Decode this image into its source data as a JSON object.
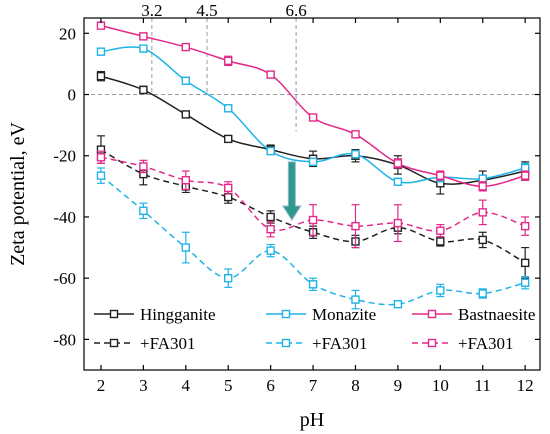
{
  "chart_data": {
    "type": "line",
    "xlabel": "pH",
    "ylabel": "Zeta potential, eV",
    "xlim": [
      1.6,
      12.35
    ],
    "ylim": [
      -90,
      25
    ],
    "x_ticks": [
      2,
      3,
      4,
      5,
      6,
      7,
      8,
      9,
      10,
      11,
      12
    ],
    "y_ticks": [
      20,
      0,
      -20,
      -40,
      -60,
      -80
    ],
    "reference_lines": {
      "horizontal_zero": 0,
      "vertical": [
        {
          "x": 3.2,
          "label": "3.2"
        },
        {
          "x": 4.5,
          "label": "4.5"
        },
        {
          "x": 6.6,
          "label": "6.6"
        }
      ]
    },
    "arrow": {
      "from": [
        6.5,
        -22
      ],
      "to": [
        6.5,
        -41
      ],
      "color": "#2e9a8c"
    },
    "legend": {
      "placement": "bottom-inside",
      "columns": 3
    },
    "series": [
      {
        "name": "Hingganite",
        "color": "#222222",
        "dashed": false,
        "x": [
          2,
          3,
          4,
          5,
          6,
          7,
          8,
          9,
          10,
          11,
          12
        ],
        "y": [
          6,
          1.5,
          -6.5,
          -14.5,
          -18,
          -21,
          -20,
          -23,
          -29,
          -28,
          -25
        ],
        "err": [
          1.5,
          1.2,
          1,
          1,
          1.5,
          2.5,
          2,
          3,
          3.5,
          3,
          3
        ]
      },
      {
        "name": "Monazite",
        "color": "#1fb3e6",
        "dashed": false,
        "x": [
          2,
          3,
          4,
          5,
          6,
          7,
          8,
          9,
          10,
          11,
          12
        ],
        "y": [
          14,
          15,
          4.5,
          -4.5,
          -18.5,
          -22,
          -19.5,
          -28.5,
          -27,
          -27.5,
          -24
        ],
        "err": [
          1,
          1,
          1,
          1,
          1,
          1,
          1,
          1,
          1.5,
          1,
          1.5
        ]
      },
      {
        "name": "Bastnaesite",
        "color": "#e2298a",
        "dashed": false,
        "x": [
          2,
          3,
          4,
          5,
          6,
          7,
          8,
          9,
          10,
          11,
          12
        ],
        "y": [
          22.5,
          19,
          15.5,
          11,
          6.5,
          -7.5,
          -13,
          -22.5,
          -26.5,
          -30,
          -26.5
        ],
        "err": [
          1,
          1,
          1,
          1.5,
          1,
          1,
          1,
          1.5,
          1.5,
          1.5,
          1.5
        ]
      },
      {
        "name": "+FA301",
        "color": "#222222",
        "dashed": true,
        "x": [
          2,
          3,
          4,
          5,
          6,
          7,
          8,
          9,
          10,
          11,
          12
        ],
        "y": [
          -18,
          -26,
          -30,
          -33.5,
          -40,
          -45,
          -48,
          -43.5,
          -48,
          -47.5,
          -55
        ],
        "err": [
          4.5,
          3.5,
          2,
          2,
          2,
          2,
          2,
          2,
          1.5,
          2.5,
          5
        ]
      },
      {
        "name": "+FA301",
        "color": "#1fb3e6",
        "dashed": true,
        "x": [
          2,
          3,
          4,
          5,
          6,
          7,
          8,
          9,
          10,
          11,
          12
        ],
        "y": [
          -26.5,
          -38,
          -50,
          -60,
          -51,
          -62,
          -67,
          -68.5,
          -64,
          -65,
          -61.5
        ],
        "err": [
          2.5,
          2.5,
          5,
          3,
          2,
          2,
          3,
          1,
          2,
          1.5,
          2
        ]
      },
      {
        "name": "+FA301",
        "color": "#e2298a",
        "dashed": true,
        "x": [
          2,
          3,
          4,
          5,
          6,
          7,
          8,
          9,
          10,
          11,
          12
        ],
        "y": [
          -20.5,
          -23.5,
          -28,
          -30.5,
          -44,
          -41,
          -43,
          -42,
          -44.5,
          -38.5,
          -43
        ],
        "err": [
          2,
          2,
          3,
          2,
          2.5,
          5,
          7,
          6,
          2,
          4,
          3
        ]
      }
    ]
  }
}
